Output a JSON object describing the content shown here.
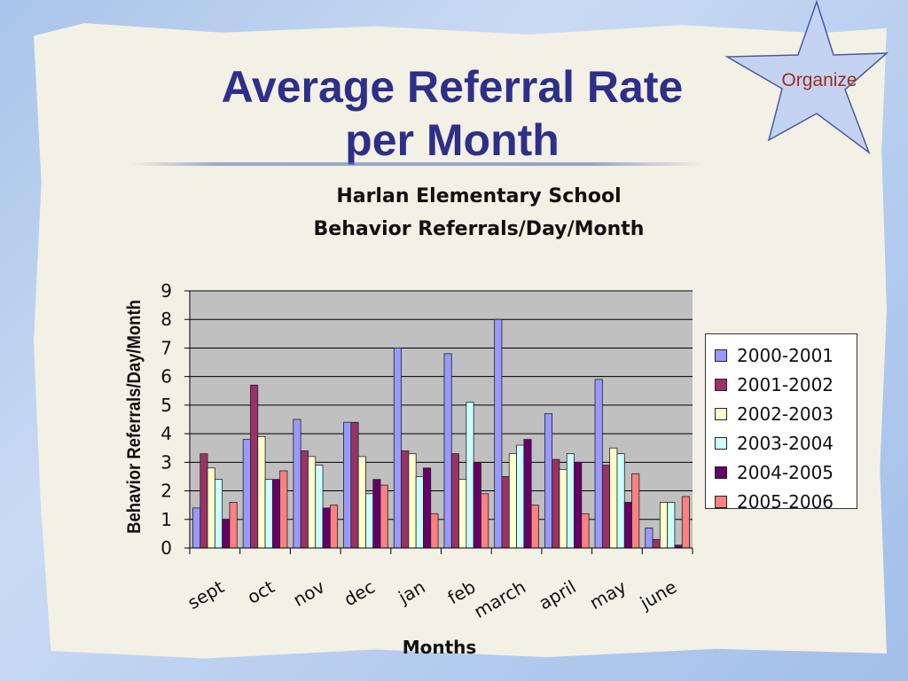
{
  "slide": {
    "title_line1": "Average Referral Rate",
    "title_line2": "per Month",
    "star_label": "Organize"
  },
  "colors": {
    "title": "#2e2f8a",
    "star_fill": "#c5d3f2",
    "star_text": "#9b2d1f",
    "plot_background": "#c0c0c0"
  },
  "chart_data": {
    "type": "bar",
    "title": [
      "Harlan Elementary School",
      "Behavior Referrals/Day/Month"
    ],
    "xlabel": "Months",
    "ylabel": "Behavior Referrals/Day/Month",
    "categories": [
      "sept",
      "oct",
      "nov",
      "dec",
      "jan",
      "feb",
      "march",
      "april",
      "may",
      "june"
    ],
    "ylim": [
      0,
      9
    ],
    "yticks": [
      0,
      1,
      2,
      3,
      4,
      5,
      6,
      7,
      8,
      9
    ],
    "grid": true,
    "legend_position": "right",
    "series": [
      {
        "name": "2000-2001",
        "color": "#9999ff",
        "values": [
          1.4,
          3.8,
          4.5,
          4.4,
          7.0,
          6.8,
          8.0,
          4.7,
          5.9,
          0.7
        ]
      },
      {
        "name": "2001-2002",
        "color": "#993366",
        "values": [
          3.3,
          5.7,
          3.4,
          4.4,
          3.4,
          3.3,
          2.5,
          3.1,
          2.9,
          0.3
        ]
      },
      {
        "name": "2002-2003",
        "color": "#ffffcc",
        "values": [
          2.8,
          3.9,
          3.2,
          3.2,
          3.3,
          2.4,
          3.3,
          2.75,
          3.5,
          1.6
        ]
      },
      {
        "name": "2003-2004",
        "color": "#ccffff",
        "values": [
          2.4,
          2.4,
          2.9,
          1.9,
          2.5,
          5.1,
          3.6,
          3.3,
          3.3,
          1.6
        ]
      },
      {
        "name": "2004-2005",
        "color": "#660066",
        "values": [
          1.0,
          2.4,
          1.4,
          2.4,
          2.8,
          3.0,
          3.8,
          3.0,
          1.6,
          0.1
        ]
      },
      {
        "name": "2005-2006",
        "color": "#ff8080",
        "values": [
          1.6,
          2.7,
          1.5,
          2.2,
          1.2,
          1.9,
          1.5,
          1.2,
          2.6,
          1.8
        ]
      }
    ]
  }
}
